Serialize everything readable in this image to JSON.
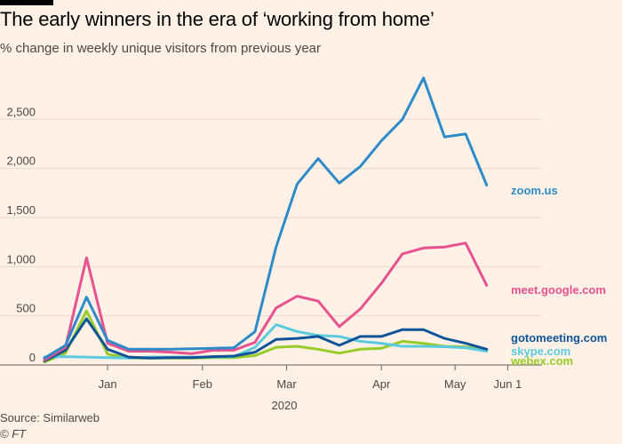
{
  "header": {
    "title": "The early winners in the era of ‘working from home’",
    "subtitle": "% change in weekly unique visitors from previous year"
  },
  "footer": {
    "source": "Source: Similarweb",
    "credit": "© FT"
  },
  "chart_data": {
    "type": "line",
    "title": "The early winners in the era of ‘working from home’",
    "subtitle": "% change in weekly unique visitors from previous year",
    "xlabel": "2020",
    "ylabel": "",
    "ylim": [
      0,
      2900
    ],
    "y_ticks": [
      0,
      500,
      1000,
      1500,
      2000,
      2500
    ],
    "y_tick_labels": [
      "0",
      "500",
      "1,000",
      "1,500",
      "2,000",
      "2,500"
    ],
    "x_ticks": [
      {
        "label": "Jan",
        "week": 3
      },
      {
        "label": "Feb",
        "week": 7.5
      },
      {
        "label": "Mar",
        "week": 11.5
      },
      {
        "label": "Apr",
        "week": 16
      },
      {
        "label": "May",
        "week": 19.5
      },
      {
        "label": "Jun 1",
        "week": 22
      }
    ],
    "weeks": [
      0,
      1,
      2,
      3,
      4,
      5,
      6,
      7,
      8,
      9,
      10,
      11,
      12,
      13,
      14,
      15,
      16,
      17,
      18,
      19,
      20,
      21,
      22
    ],
    "series": [
      {
        "name": "zoom.us",
        "color": "#2e8bc9",
        "values": [
          70,
          200,
          690,
          250,
          160,
          160,
          160,
          165,
          170,
          175,
          340,
          1200,
          1840,
          2100,
          1850,
          2020,
          2280,
          2500,
          2920,
          2320,
          2350,
          1830,
          null
        ]
      },
      {
        "name": "meet.google.com",
        "color": "#e8518f",
        "values": [
          50,
          180,
          1090,
          220,
          140,
          140,
          130,
          115,
          150,
          150,
          230,
          580,
          700,
          650,
          390,
          570,
          830,
          1130,
          1190,
          1200,
          1240,
          810,
          null
        ]
      },
      {
        "name": "gotomeeting.com",
        "color": "#0f5499",
        "values": [
          40,
          150,
          470,
          160,
          80,
          70,
          75,
          75,
          85,
          90,
          130,
          260,
          270,
          290,
          200,
          290,
          290,
          360,
          360,
          270,
          220,
          160,
          null
        ]
      },
      {
        "name": "skype.com",
        "color": "#5bcbe0",
        "values": [
          80,
          85,
          80,
          75,
          70,
          80,
          80,
          80,
          80,
          85,
          180,
          410,
          340,
          300,
          290,
          240,
          220,
          190,
          190,
          185,
          175,
          140,
          null
        ]
      },
      {
        "name": "webex.com",
        "color": "#96cc28",
        "values": [
          30,
          120,
          550,
          110,
          70,
          70,
          70,
          70,
          75,
          75,
          95,
          180,
          190,
          160,
          120,
          160,
          170,
          240,
          220,
          190,
          185,
          150,
          null
        ]
      }
    ],
    "legend": "direct-labels-right"
  }
}
